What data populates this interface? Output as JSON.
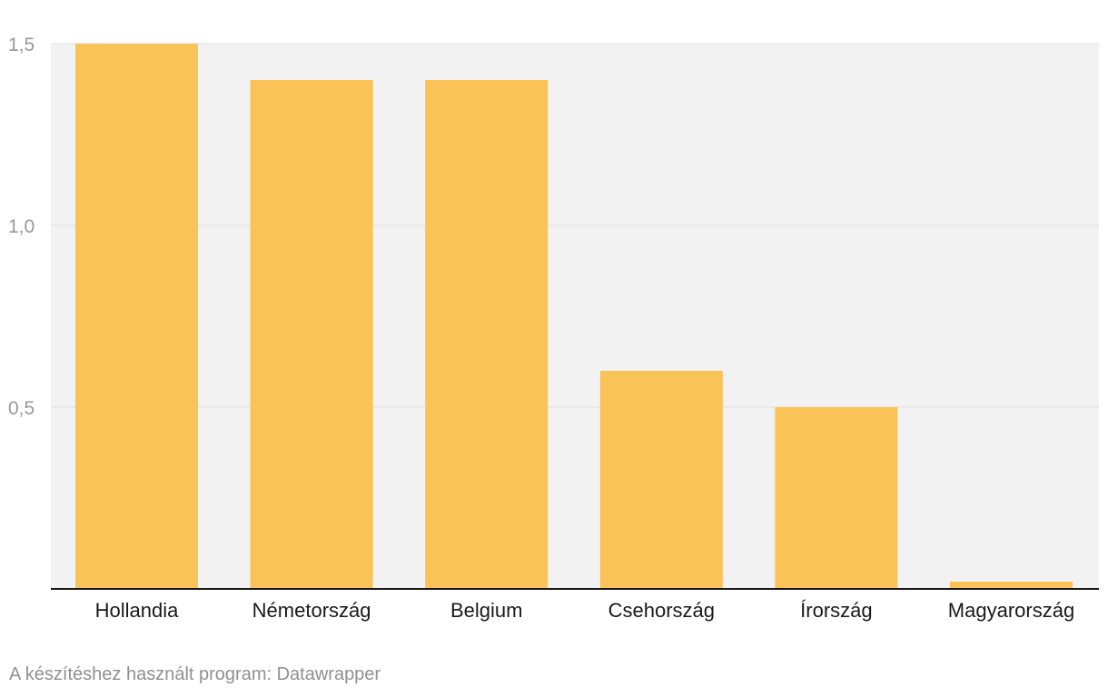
{
  "chart_data": {
    "type": "bar",
    "categories": [
      "Hollandia",
      "Németország",
      "Belgium",
      "Csehország",
      "Írország",
      "Magyarország"
    ],
    "values": [
      1.5,
      1.4,
      1.4,
      0.6,
      0.5,
      0.02
    ],
    "ylim": [
      0,
      1.5
    ],
    "yticks": [
      0.5,
      1.0,
      1.5
    ],
    "ytick_labels": [
      "0,5",
      "1,0",
      "1,5"
    ],
    "grid": true,
    "colors": {
      "bar": "#f9c357",
      "plot_background": "#f2f2f2",
      "gridline": "#e0e0e0",
      "baseline": "#1a1a1a"
    }
  },
  "footer": {
    "credit": "A készítéshez használt program: Datawrapper"
  }
}
